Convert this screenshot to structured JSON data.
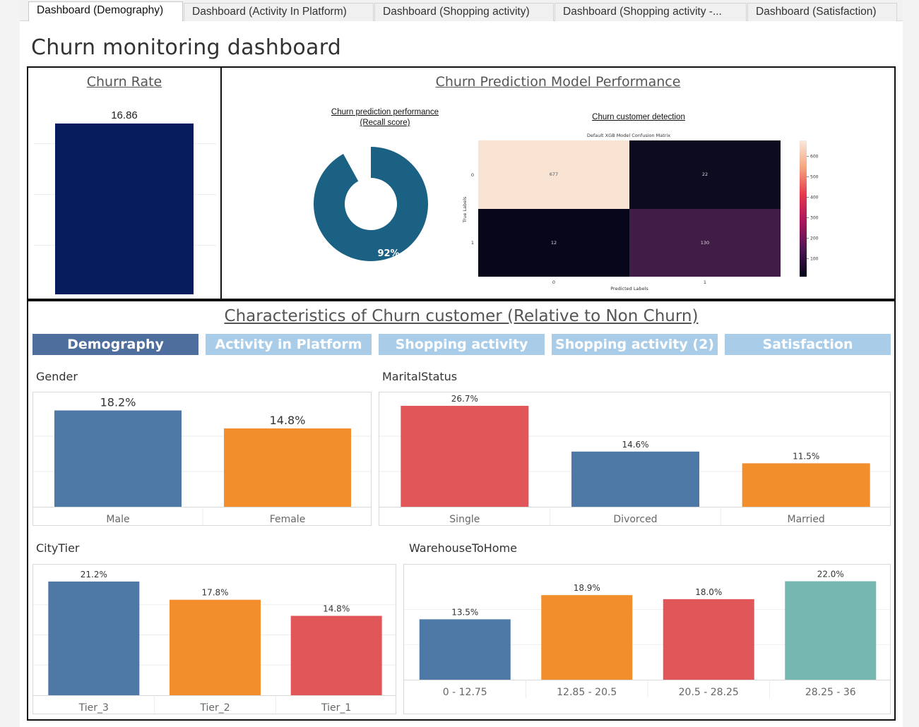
{
  "tabs": [
    {
      "label": "Dashboard (Demography)",
      "active": true
    },
    {
      "label": "Dashboard (Activity In Platform)",
      "active": false
    },
    {
      "label": "Dashboard (Shopping activity)",
      "active": false
    },
    {
      "label": "Dashboard (Shopping activity -...",
      "active": false
    },
    {
      "label": "Dashboard (Satisfaction)",
      "active": false
    }
  ],
  "page_title": "Churn monitoring dashboard",
  "churn_rate": {
    "title": "Churn Rate",
    "value": 16.86,
    "value_label": "16.86",
    "bar_color": "#061c5c"
  },
  "model": {
    "title": "Churn Prediction Model Performance",
    "recall_title_line1": "Churn prediction performance",
    "recall_title_line2": "(Recall score)",
    "recall_value": 92,
    "recall_label": "92%",
    "donut_color": "#1b6183",
    "detection_title": "Churn customer detection",
    "confusion_title": "Default XGB Model Confusion Matrix",
    "ylabel": "True Labels",
    "xlabel": "Predicted Labels",
    "cells": [
      [
        "677",
        "22"
      ],
      [
        "12",
        "130"
      ]
    ],
    "row_labels": [
      "0",
      "1"
    ],
    "col_labels": [
      "0",
      "1"
    ],
    "colorbar_ticks": [
      "600",
      "500",
      "400",
      "300",
      "200",
      "100"
    ]
  },
  "characteristics": {
    "title": "Characteristics of Churn customer (Relative to Non Churn)",
    "tabs": [
      {
        "label": "Demography",
        "active": true
      },
      {
        "label": "Activity in Platform",
        "active": false
      },
      {
        "label": "Shopping activity",
        "active": false
      },
      {
        "label": "Shopping activity (2)",
        "active": false
      },
      {
        "label": "Satisfaction",
        "active": false
      }
    ]
  },
  "colors": {
    "blue": "#4e79a7",
    "orange": "#f28e2b",
    "red": "#e15759",
    "teal": "#76b7b2"
  },
  "chart_data": [
    {
      "type": "bar",
      "title": "Gender",
      "categories": [
        "Male",
        "Female"
      ],
      "values": [
        18.2,
        14.8
      ],
      "labels": [
        "18.2%",
        "14.8%"
      ],
      "colors": [
        "#4e79a7",
        "#f28e2b"
      ]
    },
    {
      "type": "bar",
      "title": "MaritalStatus",
      "categories": [
        "Single",
        "Divorced",
        "Married"
      ],
      "values": [
        26.7,
        14.6,
        11.5
      ],
      "labels": [
        "26.7%",
        "14.6%",
        "11.5%"
      ],
      "colors": [
        "#e15759",
        "#4e79a7",
        "#f28e2b"
      ]
    },
    {
      "type": "bar",
      "title": "CityTier",
      "categories": [
        "Tier_3",
        "Tier_2",
        "Tier_1"
      ],
      "values": [
        21.2,
        17.8,
        14.8
      ],
      "labels": [
        "21.2%",
        "17.8%",
        "14.8%"
      ],
      "colors": [
        "#4e79a7",
        "#f28e2b",
        "#e15759"
      ]
    },
    {
      "type": "bar",
      "title": "WarehouseToHome",
      "categories": [
        "0 - 12.75",
        "12.85 - 20.5",
        "20.5 - 28.25",
        "28.25 - 36"
      ],
      "values": [
        13.5,
        18.9,
        18.0,
        22.0
      ],
      "labels": [
        "13.5%",
        "18.9%",
        "18.0%",
        "22.0%"
      ],
      "colors": [
        "#4e79a7",
        "#f28e2b",
        "#e15759",
        "#76b7b2"
      ]
    }
  ]
}
